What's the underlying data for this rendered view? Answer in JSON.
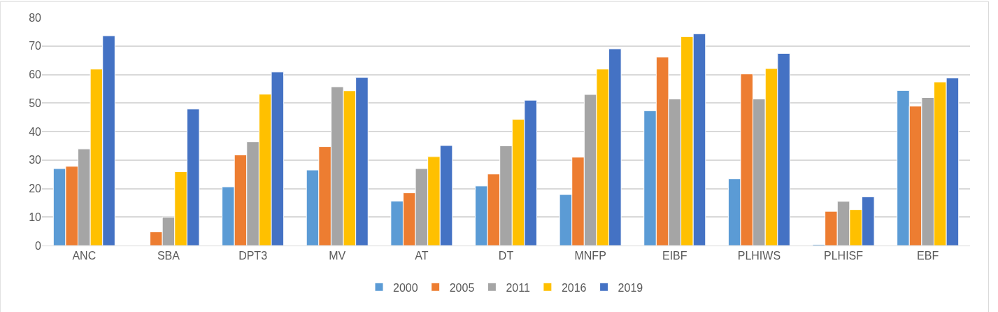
{
  "chart_data": {
    "type": "bar",
    "categories": [
      "ANC",
      "SBA",
      "DPT3",
      "MV",
      "AT",
      "DT",
      "MNFP",
      "EIBF",
      "PLHIWS",
      "PLHISF",
      "EBF"
    ],
    "series": [
      {
        "name": "2000",
        "color": "#5b9bd5",
        "values": [
          27.0,
          null,
          20.6,
          26.5,
          15.6,
          20.9,
          17.9,
          47.3,
          23.4,
          0.4,
          54.4
        ]
      },
      {
        "name": "2005",
        "color": "#ed7d31",
        "values": [
          27.8,
          4.8,
          31.8,
          34.7,
          18.5,
          25.1,
          31.0,
          66.1,
          60.2,
          12.0,
          48.9
        ]
      },
      {
        "name": "2011",
        "color": "#a5a5a5",
        "values": [
          33.9,
          10.0,
          36.4,
          55.7,
          27.0,
          35.0,
          53.0,
          51.4,
          51.4,
          15.5,
          51.9
        ]
      },
      {
        "name": "2016",
        "color": "#ffc000",
        "values": [
          61.9,
          25.9,
          53.1,
          54.3,
          31.2,
          44.3,
          61.9,
          73.3,
          62.1,
          12.6,
          57.4
        ]
      },
      {
        "name": "2019",
        "color": "#4472c4",
        "values": [
          73.6,
          47.9,
          60.9,
          59.0,
          35.1,
          51.0,
          69.0,
          74.3,
          67.4,
          17.1,
          58.8
        ]
      }
    ],
    "ylim": [
      0,
      80
    ],
    "yticks": [
      0,
      10,
      20,
      30,
      40,
      50,
      60,
      70,
      80
    ],
    "grid": "y",
    "legend": "bottom"
  }
}
